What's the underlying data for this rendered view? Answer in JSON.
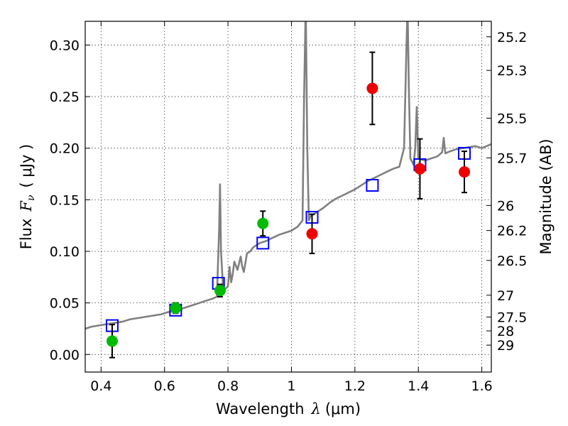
{
  "chart_data": {
    "type": "scatter",
    "xlabel_main": "Wavelength",
    "xlabel_symbol": "λ",
    "xlabel_unit": "(μm)",
    "ylabel_main": "Flux",
    "ylabel_symbol": "F",
    "ylabel_symbol_sub": "ν",
    "ylabel_unit": "( μJy )",
    "ylabel_right": "Magnitude (AB)",
    "xlim": [
      0.35,
      1.63
    ],
    "ylim": [
      -0.017,
      0.323
    ],
    "grid": true,
    "x_ticks": [
      0.4,
      0.6,
      0.8,
      1.0,
      1.2,
      1.4,
      1.6
    ],
    "x_tick_labels": [
      "0.4",
      "0.6",
      "0.8",
      "1",
      "1.2",
      "1.4",
      "1.6"
    ],
    "y_ticks": [
      0.0,
      0.05,
      0.1,
      0.15,
      0.2,
      0.25,
      0.3
    ],
    "y_tick_labels": [
      "0.00",
      "0.05",
      "0.10",
      "0.15",
      "0.20",
      "0.25",
      "0.30"
    ],
    "right_ticks": [
      {
        "flux": 0.308,
        "label": "25.2"
      },
      {
        "flux": 0.2754,
        "label": "25.3"
      },
      {
        "flux": 0.2291,
        "label": "25.5"
      },
      {
        "flux": 0.1906,
        "label": "25.7"
      },
      {
        "flux": 0.1445,
        "label": "26"
      },
      {
        "flux": 0.1202,
        "label": "26.2"
      },
      {
        "flux": 0.0912,
        "label": "26.5"
      },
      {
        "flux": 0.0575,
        "label": "27"
      },
      {
        "flux": 0.0363,
        "label": "27.5"
      },
      {
        "flux": 0.0229,
        "label": "28"
      },
      {
        "flux": 0.0091,
        "label": "29"
      }
    ],
    "series": [
      {
        "kind": "line",
        "color": "#808080",
        "x": [
          0.35,
          0.37,
          0.39,
          0.41,
          0.43,
          0.45,
          0.47,
          0.49,
          0.51,
          0.53,
          0.55,
          0.57,
          0.59,
          0.61,
          0.63,
          0.65,
          0.67,
          0.69,
          0.71,
          0.73,
          0.75,
          0.765,
          0.772,
          0.775,
          0.778,
          0.785,
          0.8,
          0.805,
          0.81,
          0.815,
          0.82,
          0.83,
          0.84,
          0.845,
          0.85,
          0.86,
          0.87,
          0.88,
          0.9,
          0.92,
          0.94,
          0.96,
          0.98,
          1.0,
          1.02,
          1.035,
          1.04,
          1.045,
          1.05,
          1.055,
          1.06,
          1.08,
          1.1,
          1.12,
          1.14,
          1.16,
          1.18,
          1.2,
          1.22,
          1.24,
          1.26,
          1.28,
          1.3,
          1.32,
          1.34,
          1.355,
          1.362,
          1.366,
          1.37,
          1.375,
          1.385,
          1.39,
          1.395,
          1.4,
          1.42,
          1.44,
          1.46,
          1.475,
          1.48,
          1.485,
          1.5,
          1.52,
          1.54,
          1.56,
          1.58,
          1.6,
          1.63
        ],
        "y": [
          0.025,
          0.027,
          0.028,
          0.029,
          0.03,
          0.031,
          0.032,
          0.034,
          0.035,
          0.036,
          0.037,
          0.038,
          0.039,
          0.041,
          0.042,
          0.044,
          0.046,
          0.048,
          0.05,
          0.052,
          0.054,
          0.056,
          0.12,
          0.165,
          0.1,
          0.062,
          0.066,
          0.085,
          0.07,
          0.078,
          0.09,
          0.082,
          0.095,
          0.085,
          0.08,
          0.098,
          0.1,
          0.104,
          0.108,
          0.11,
          0.113,
          0.116,
          0.118,
          0.12,
          0.124,
          0.13,
          0.25,
          0.34,
          0.2,
          0.13,
          0.134,
          0.138,
          0.142,
          0.147,
          0.151,
          0.154,
          0.157,
          0.16,
          0.164,
          0.168,
          0.171,
          0.174,
          0.177,
          0.18,
          0.182,
          0.2,
          0.29,
          0.34,
          0.26,
          0.19,
          0.184,
          0.2,
          0.24,
          0.19,
          0.188,
          0.19,
          0.192,
          0.196,
          0.21,
          0.195,
          0.197,
          0.199,
          0.2,
          0.201,
          0.202,
          0.2,
          0.204
        ]
      },
      {
        "kind": "markers",
        "marker": "square",
        "color": "#0000ff",
        "x": [
          0.435,
          0.635,
          0.77,
          0.91,
          1.065,
          1.255,
          1.405,
          1.545
        ],
        "y": [
          0.028,
          0.043,
          0.069,
          0.108,
          0.133,
          0.164,
          0.184,
          0.195
        ]
      },
      {
        "kind": "markers",
        "marker": "circle",
        "color": "#00bb00",
        "x": [
          0.435,
          0.635,
          0.775,
          0.91
        ],
        "y": [
          0.013,
          0.045,
          0.062,
          0.127
        ],
        "err": [
          0.016,
          0.005,
          0.006,
          0.012
        ]
      },
      {
        "kind": "markers",
        "marker": "circle",
        "color": "#ee0000",
        "x": [
          1.065,
          1.255,
          1.405,
          1.545
        ],
        "y": [
          0.117,
          0.258,
          0.18,
          0.177
        ],
        "err": [
          0.019,
          0.035,
          0.029,
          0.02
        ]
      }
    ]
  }
}
